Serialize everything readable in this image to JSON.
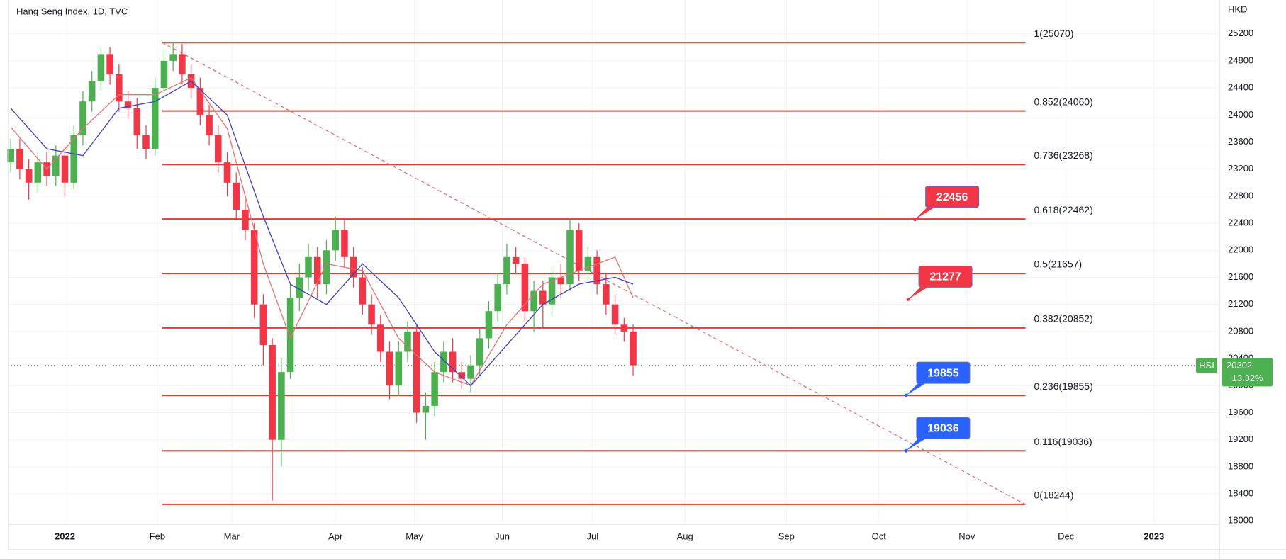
{
  "chart_data": {
    "type": "candlestick",
    "title": "Hang Seng Index, 1D, TVC",
    "y_axis_label": "HKD",
    "up_color": "#4caf50",
    "down_color": "#f23645",
    "x": [
      0,
      2,
      4,
      6,
      8,
      10,
      12,
      14,
      16,
      18,
      20,
      22,
      24,
      26,
      28,
      30,
      32,
      34,
      36,
      38,
      40,
      42,
      44,
      46,
      48,
      50,
      52,
      54,
      56,
      58,
      60,
      62,
      64,
      66,
      68,
      70,
      72,
      74,
      76,
      78,
      80,
      82,
      84,
      86,
      88,
      90,
      92,
      94,
      96,
      98,
      100,
      102,
      104,
      106,
      108,
      110,
      112,
      114,
      116,
      118,
      120,
      122,
      124,
      126,
      128,
      130,
      132,
      134,
      136,
      138
    ],
    "open": [
      23300,
      23500,
      23200,
      23000,
      23300,
      23100,
      23400,
      23000,
      23700,
      24200,
      24500,
      24900,
      24600,
      24200,
      24100,
      23700,
      23500,
      24400,
      24800,
      24900,
      24600,
      24400,
      24000,
      23700,
      23300,
      23000,
      22600,
      22300,
      21200,
      20600,
      19200,
      20200,
      21300,
      21600,
      21900,
      21500,
      22000,
      22300,
      21900,
      21600,
      21200,
      20900,
      20500,
      20000,
      20500,
      20800,
      19600,
      19700,
      20200,
      20500,
      20200,
      20100,
      20300,
      20700,
      21100,
      21500,
      21900,
      21800,
      21100,
      21400,
      21200,
      21600,
      21500,
      22300,
      21700,
      21900,
      21500,
      21200,
      20900,
      20800
    ],
    "high": [
      23650,
      23650,
      23350,
      23450,
      23450,
      23550,
      23550,
      23850,
      24350,
      24650,
      25000,
      25000,
      24750,
      24350,
      24250,
      23850,
      24550,
      24950,
      25070,
      25050,
      24750,
      24550,
      24150,
      23850,
      23450,
      23150,
      22750,
      22400,
      21350,
      20700,
      20400,
      21500,
      21800,
      22100,
      22050,
      22150,
      22500,
      22450,
      22050,
      21750,
      21350,
      21050,
      20650,
      20650,
      20950,
      20900,
      19900,
      20350,
      20650,
      20700,
      20350,
      20450,
      20850,
      21250,
      21650,
      22100,
      22050,
      21900,
      21550,
      21550,
      21750,
      21800,
      22470,
      22400,
      22050,
      22000,
      21650,
      21350,
      21000,
      20900
    ],
    "low": [
      23150,
      23050,
      22750,
      22850,
      22950,
      22950,
      22800,
      22900,
      23550,
      24050,
      24350,
      24450,
      24050,
      23950,
      23500,
      23350,
      23400,
      24250,
      24650,
      24450,
      24250,
      23850,
      23550,
      23150,
      22800,
      22450,
      22150,
      21000,
      20300,
      18300,
      18800,
      20100,
      21100,
      21400,
      21300,
      21350,
      21850,
      21750,
      21450,
      21050,
      20750,
      20350,
      19800,
      19850,
      20350,
      19450,
      19200,
      19550,
      20050,
      20050,
      19950,
      19900,
      20150,
      20550,
      20950,
      21350,
      21650,
      20950,
      20800,
      20850,
      21050,
      21300,
      21400,
      21550,
      21550,
      21350,
      21050,
      20750,
      20650,
      20150
    ],
    "close": [
      23500,
      23200,
      23000,
      23300,
      23100,
      23400,
      23000,
      23700,
      24200,
      24500,
      24900,
      24600,
      24200,
      24100,
      23700,
      23500,
      24400,
      24800,
      24900,
      24600,
      24400,
      24000,
      23700,
      23300,
      23000,
      22600,
      22300,
      21200,
      20600,
      19200,
      20200,
      21300,
      21600,
      21900,
      21500,
      22000,
      22300,
      21900,
      21600,
      21200,
      20900,
      20500,
      20000,
      20500,
      20800,
      19600,
      19700,
      20200,
      20500,
      20200,
      20100,
      20300,
      20700,
      21100,
      21500,
      21900,
      21800,
      21100,
      21400,
      21200,
      21600,
      21500,
      22300,
      21700,
      21900,
      21500,
      21200,
      20900,
      20800,
      20300
    ],
    "series": [
      {
        "color": "#e57373",
        "x": [
          0,
          8,
          16,
          24,
          32,
          40,
          48,
          56,
          62,
          70,
          78,
          86,
          94,
          102,
          110,
          118,
          126,
          134,
          138
        ],
        "values": [
          23820,
          23200,
          23800,
          24300,
          24300,
          24550,
          23800,
          21800,
          20700,
          21800,
          21700,
          20700,
          20200,
          20000,
          20900,
          21500,
          21700,
          21900,
          21300
        ]
      },
      {
        "color": "#3f3fbf",
        "x": [
          0,
          8,
          16,
          24,
          32,
          40,
          48,
          56,
          62,
          70,
          78,
          86,
          94,
          102,
          110,
          118,
          126,
          134,
          138
        ],
        "values": [
          24100,
          23500,
          23400,
          24100,
          24200,
          24500,
          24000,
          22500,
          21500,
          21200,
          21800,
          21300,
          20500,
          20000,
          20600,
          21200,
          21500,
          21600,
          21500
        ]
      }
    ],
    "fib_color": "#e53935",
    "fib_x": [
      33.6,
      225
    ],
    "fib_levels": [
      {
        "value": 25070,
        "label": "1(25070)"
      },
      {
        "value": 24060,
        "label": "0.852(24060)"
      },
      {
        "value": 23268,
        "label": "0.736(23268)"
      },
      {
        "value": 22462,
        "label": "0.618(22462)"
      },
      {
        "value": 21657,
        "label": "0.5(21657)"
      },
      {
        "value": 20852,
        "label": "0.382(20852)"
      },
      {
        "value": 19855,
        "label": "0.236(19855)"
      },
      {
        "value": 19036,
        "label": "0.116(19036)"
      },
      {
        "value": 18244,
        "label": "0(18244)"
      }
    ],
    "trendline": {
      "x": [
        33.6,
        225
      ],
      "y": [
        25070,
        18244
      ],
      "color": "#e57373"
    },
    "annotations": [
      {
        "x": 200.5,
        "value": 22456,
        "label": "22456",
        "color": "#f23645"
      },
      {
        "x": 199,
        "value": 21277,
        "label": "21277",
        "color": "#f23645"
      },
      {
        "x": 198.5,
        "value": 19855,
        "label": "19855",
        "color": "#2962ff"
      },
      {
        "x": 198.5,
        "value": 19036,
        "label": "19036",
        "color": "#2962ff"
      }
    ],
    "last_price": {
      "symbol": "HSI",
      "value": 20302,
      "label": "20302",
      "change": {
        "value": -13.32,
        "label": "−13.32%"
      },
      "color": "#4caf50"
    },
    "xlim": [
      -0.5,
      268
    ],
    "ylim": [
      17950,
      25700
    ],
    "xticks": [
      {
        "value": 12,
        "label": "2022"
      },
      {
        "value": 32.5,
        "label": "Feb"
      },
      {
        "value": 49,
        "label": "Mar"
      },
      {
        "value": 72,
        "label": "Apr"
      },
      {
        "value": 89.5,
        "label": "May"
      },
      {
        "value": 109,
        "label": "Jun"
      },
      {
        "value": 129,
        "label": "Jul"
      },
      {
        "value": 149.5,
        "label": "Aug"
      },
      {
        "value": 172,
        "label": "Sep"
      },
      {
        "value": 192.5,
        "label": "Oct"
      },
      {
        "value": 212,
        "label": "Nov"
      },
      {
        "value": 234,
        "label": "Dec"
      },
      {
        "value": 253.5,
        "label": "2023"
      }
    ],
    "yticks": [
      18000,
      18400,
      18800,
      19200,
      19600,
      20000,
      20400,
      20800,
      21200,
      21600,
      22000,
      22400,
      22800,
      23200,
      23600,
      24000,
      24400,
      24800,
      25200
    ],
    "grid": true
  }
}
